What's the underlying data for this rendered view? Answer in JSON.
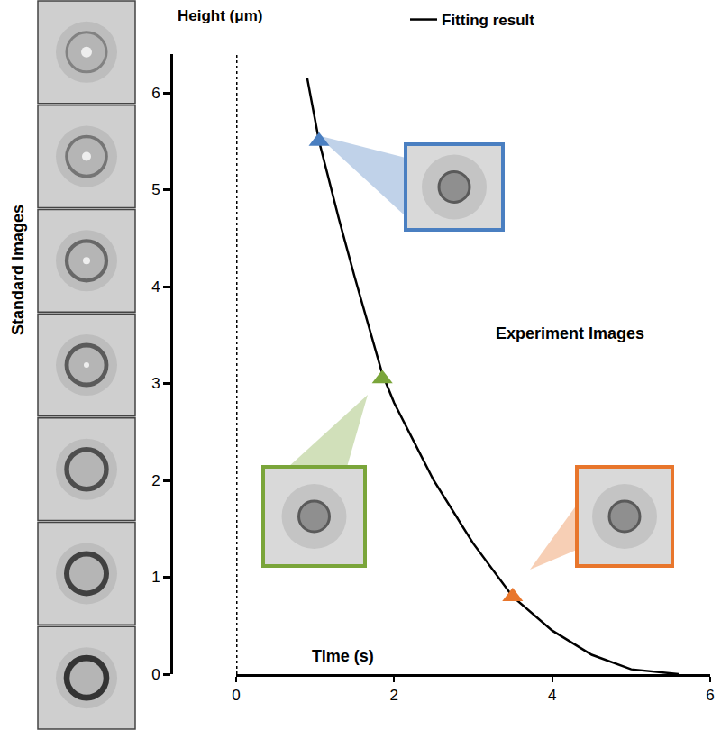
{
  "chart_data": {
    "type": "line",
    "x_label": "Time (s)",
    "y_label": "Height (μm)",
    "annotations": [
      "Experiment Images",
      "Standard Images"
    ],
    "series": [
      {
        "name": "Fitting result",
        "type": "line",
        "color": "#000000",
        "line_style": "solid",
        "x": [
          0.9,
          1.05,
          1.3,
          1.5,
          1.85,
          2.0,
          2.5,
          3.0,
          3.5,
          4.0,
          4.5,
          5.0,
          5.6
        ],
        "values": [
          6.15,
          5.5,
          4.7,
          4.1,
          3.1,
          2.8,
          2.0,
          1.35,
          0.8,
          0.45,
          0.2,
          0.05,
          0.0
        ]
      },
      {
        "type": "scatter",
        "marker": "triangle-up",
        "colors": [
          "#4a7fc1",
          "#7aa53a",
          "#e8762c"
        ],
        "x": [
          1.05,
          1.85,
          3.5
        ],
        "values": [
          5.5,
          3.05,
          0.8
        ]
      }
    ],
    "xlim": [
      0,
      6
    ],
    "ylim": [
      0,
      6.4
    ],
    "xticks": [
      0,
      2,
      4,
      6
    ],
    "yticks": [
      0,
      1,
      2,
      3,
      4,
      5,
      6
    ],
    "grid": false,
    "legend": "top"
  }
}
